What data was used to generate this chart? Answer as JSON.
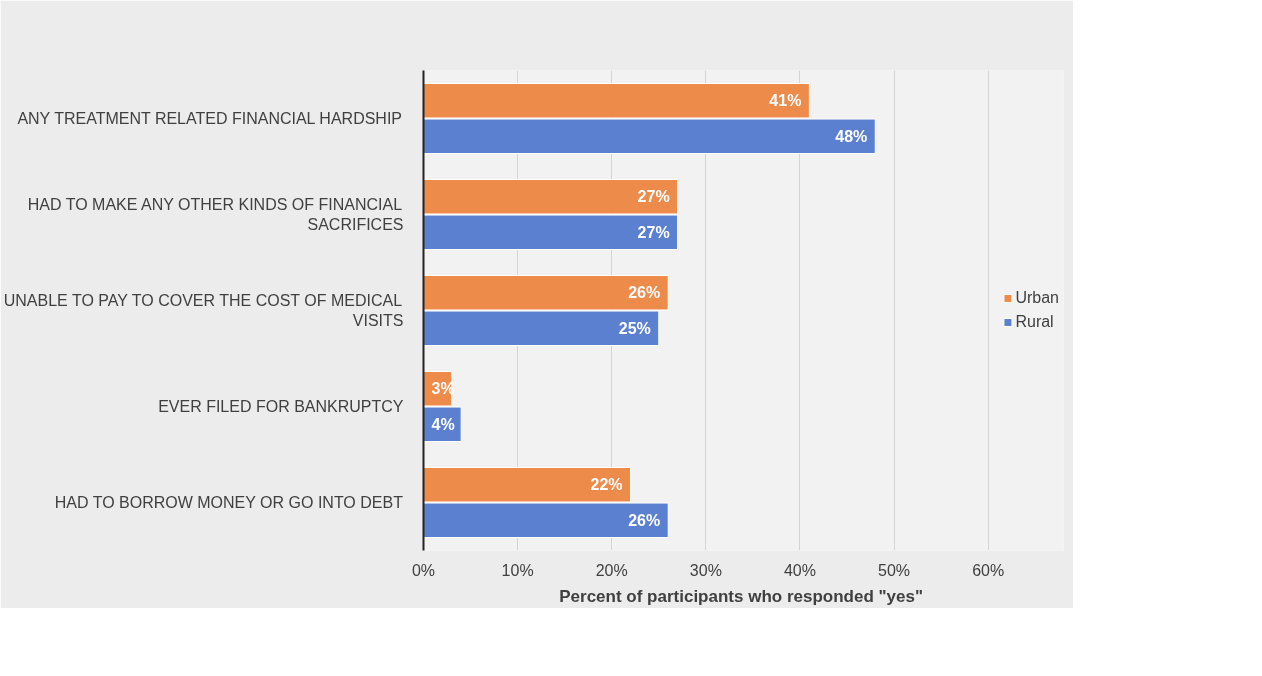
{
  "chart_data": {
    "type": "bar",
    "orientation": "horizontal",
    "categories": [
      "ANY TREATMENT RELATED FINANCIAL HARDSHIP",
      "HAD TO MAKE ANY OTHER KINDS OF FINANCIAL SACRIFICES",
      "UNABLE TO PAY TO COVER THE COST OF MEDICAL VISITS",
      "EVER FILED FOR BANKRUPTCY",
      "HAD TO BORROW MONEY OR GO INTO DEBT"
    ],
    "series": [
      {
        "name": "Urban",
        "color": "#ed8b4b",
        "values": [
          41,
          27,
          26,
          3,
          22
        ],
        "value_labels": [
          "41%",
          "27%",
          "26%",
          "3%",
          "22%"
        ]
      },
      {
        "name": "Rural",
        "color": "#5b80cf",
        "values": [
          48,
          27,
          25,
          4,
          26
        ],
        "value_labels": [
          "48%",
          "27%",
          "25%",
          "4%",
          "26%"
        ]
      }
    ],
    "xlabel": "Percent  of participants who responded \"yes\"",
    "xlim": [
      0,
      68
    ],
    "xticks": [
      {
        "value": 0,
        "label": "0%"
      },
      {
        "value": 10,
        "label": "10%"
      },
      {
        "value": 20,
        "label": "20%"
      },
      {
        "value": 30,
        "label": "30%"
      },
      {
        "value": 40,
        "label": "40%"
      },
      {
        "value": 50,
        "label": "50%"
      },
      {
        "value": 60,
        "label": "60%"
      }
    ],
    "grid": "x",
    "legend": "right"
  }
}
